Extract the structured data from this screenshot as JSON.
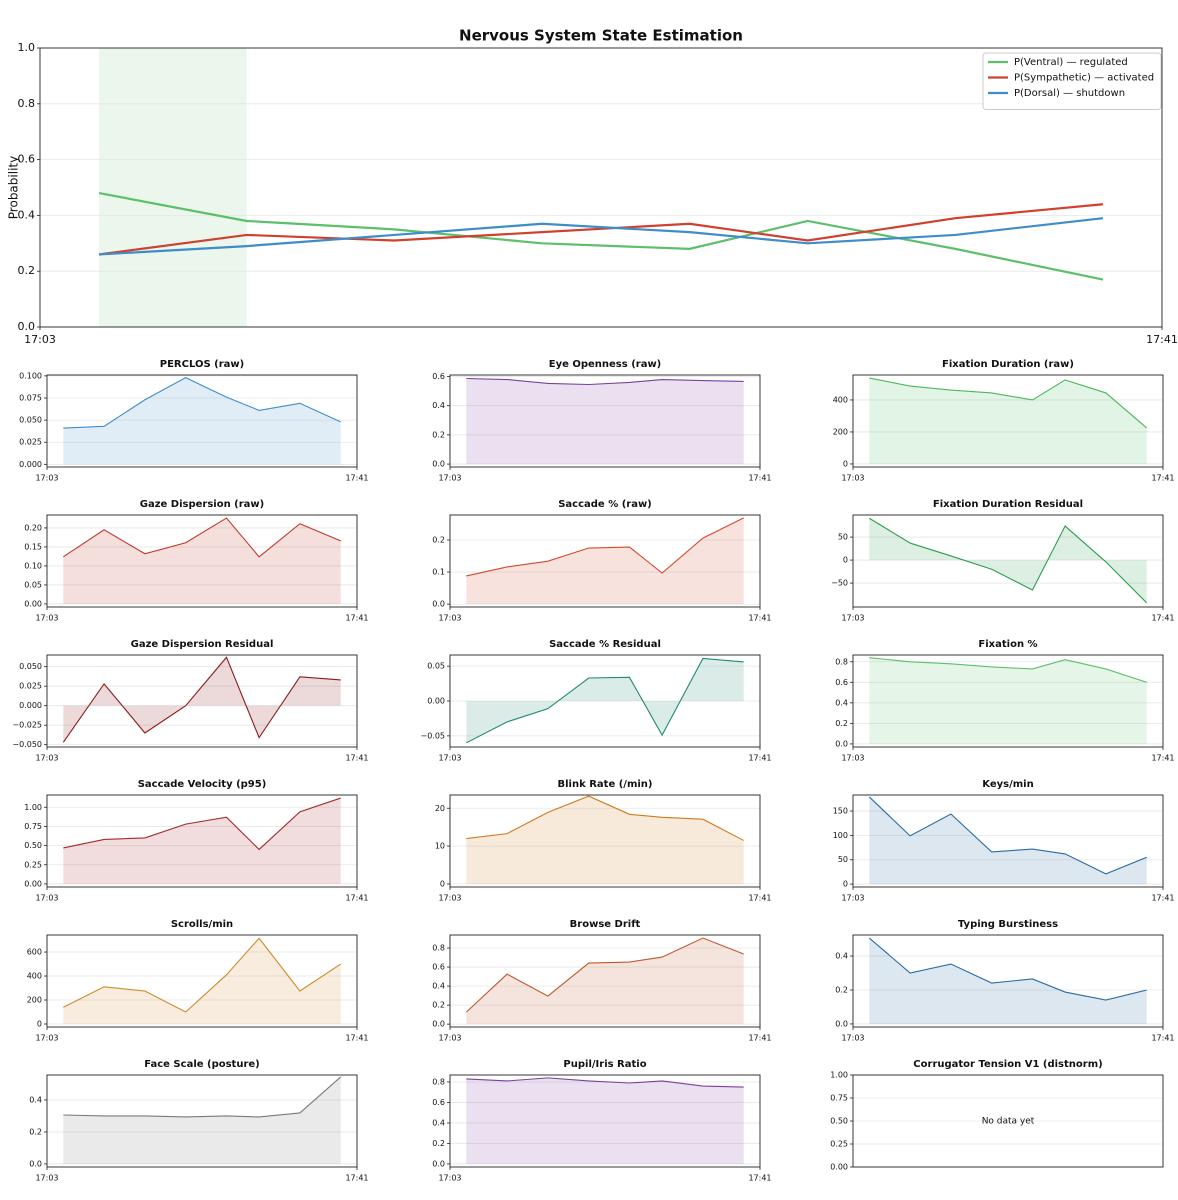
{
  "chart_data": [
    {
      "type": "line",
      "title": "Nervous System State Estimation",
      "ylabel": "Probability",
      "x": [
        "17:05",
        "17:10",
        "17:15",
        "17:20",
        "17:25",
        "17:29",
        "17:34",
        "17:39"
      ],
      "xlim": [
        "17:03",
        "17:41"
      ],
      "xticks": [
        "17:03",
        "17:41"
      ],
      "ylim": [
        0,
        1
      ],
      "yticks": [
        {
          "value": 0,
          "label": "0.0"
        },
        0.2,
        0.4,
        0.6,
        0.8,
        {
          "value": 1,
          "label": "1.0"
        }
      ],
      "grid": true,
      "legend": "upper right",
      "highlight": [
        "17:05",
        "17:10"
      ],
      "highlight_color": "#5cbf6a",
      "series": [
        {
          "name": "P(Ventral) — regulated",
          "color": "#5cbf6a",
          "values": [
            0.48,
            0.38,
            0.35,
            0.3,
            0.28,
            0.38,
            0.28,
            0.17
          ]
        },
        {
          "name": "P(Sympathetic) — activated",
          "color": "#d0402f",
          "values": [
            0.26,
            0.33,
            0.31,
            0.34,
            0.37,
            0.31,
            0.39,
            0.44
          ]
        },
        {
          "name": "P(Dorsal) — shutdown",
          "color": "#3f8ccb",
          "values": [
            0.26,
            0.29,
            0.33,
            0.37,
            0.34,
            0.3,
            0.33,
            0.39
          ]
        }
      ]
    },
    {
      "type": "area",
      "title": "PERCLOS (raw)",
      "color": "#3f8ccb",
      "x": [
        "17:05",
        "17:10",
        "17:15",
        "17:20",
        "17:25",
        "17:29",
        "17:34",
        "17:39"
      ],
      "xlim": [
        "17:03",
        "17:41"
      ],
      "xticks": [
        "17:03",
        "17:41"
      ],
      "values": [
        0.041,
        0.043,
        0.073,
        0.098,
        0.076,
        0.061,
        0.069,
        0.048
      ],
      "ylim": [
        -0.003,
        0.101
      ],
      "yticks": [
        {
          "value": 0,
          "label": "0.000"
        },
        0.025,
        {
          "value": 0.05,
          "label": "0.050"
        },
        0.075,
        {
          "value": 0.1,
          "label": "0.100"
        }
      ],
      "grid": true
    },
    {
      "type": "area",
      "title": "Eye Openness (raw)",
      "color": "#7b3f9e",
      "x": [
        "17:05",
        "17:10",
        "17:15",
        "17:20",
        "17:25",
        "17:29",
        "17:34",
        "17:39"
      ],
      "xlim": [
        "17:03",
        "17:41"
      ],
      "xticks": [
        "17:03",
        "17:41"
      ],
      "values": [
        0.586,
        0.579,
        0.552,
        0.545,
        0.559,
        0.579,
        0.572,
        0.566
      ],
      "ylim": [
        -0.02,
        0.61
      ],
      "yticks": [
        {
          "value": 0,
          "label": "0.0"
        },
        0.2,
        0.4,
        0.6
      ],
      "grid": true
    },
    {
      "type": "area",
      "title": "Fixation Duration (raw)",
      "color": "#4cb85c",
      "x": [
        "17:05",
        "17:10",
        "17:15",
        "17:20",
        "17:25",
        "17:29",
        "17:34",
        "17:39"
      ],
      "xlim": [
        "17:03",
        "17:41"
      ],
      "xticks": [
        "17:03",
        "17:41"
      ],
      "values": [
        537,
        487,
        462,
        444,
        400,
        525,
        444,
        225
      ],
      "ylim": [
        -19,
        556
      ],
      "yticks": [
        0,
        200,
        400
      ],
      "grid": true
    },
    {
      "type": "area",
      "title": "Gaze Dispersion (raw)",
      "color": "#c0392b",
      "x": [
        "17:05",
        "17:10",
        "17:15",
        "17:20",
        "17:25",
        "17:29",
        "17:34",
        "17:39"
      ],
      "xlim": [
        "17:03",
        "17:41"
      ],
      "xticks": [
        "17:03",
        "17:41"
      ],
      "values": [
        0.124,
        0.195,
        0.132,
        0.161,
        0.226,
        0.124,
        0.211,
        0.166
      ],
      "ylim": [
        -0.008,
        0.234
      ],
      "yticks": [
        {
          "value": 0,
          "label": "0.00"
        },
        0.05,
        {
          "value": 0.1,
          "label": "0.10"
        },
        0.15,
        {
          "value": 0.2,
          "label": "0.20"
        }
      ],
      "grid": true
    },
    {
      "type": "area",
      "title": "Saccade % (raw)",
      "color": "#d44b2a",
      "x": [
        "17:05",
        "17:10",
        "17:15",
        "17:20",
        "17:25",
        "17:29",
        "17:34",
        "17:39"
      ],
      "xlim": [
        "17:03",
        "17:41"
      ],
      "xticks": [
        "17:03",
        "17:41"
      ],
      "values": [
        0.088,
        0.116,
        0.134,
        0.175,
        0.178,
        0.097,
        0.206,
        0.269
      ],
      "ylim": [
        -0.009,
        0.278
      ],
      "yticks": [
        {
          "value": 0,
          "label": "0.0"
        },
        0.1,
        0.2
      ],
      "grid": true
    },
    {
      "type": "area",
      "title": "Fixation Duration Residual",
      "color": "#2e9e4e",
      "x": [
        "17:05",
        "17:10",
        "17:15",
        "17:20",
        "17:25",
        "17:29",
        "17:34",
        "17:39"
      ],
      "xlim": [
        "17:03",
        "17:41"
      ],
      "xticks": [
        "17:03",
        "17:41"
      ],
      "values": [
        91,
        37,
        9,
        -20,
        -65,
        74,
        -4,
        -93
      ],
      "ylim": [
        -102,
        98
      ],
      "yticks": [
        {
          "value": -50,
          "label": "−50"
        },
        0,
        50
      ],
      "grid": true
    },
    {
      "type": "area",
      "title": "Gaze Dispersion Residual",
      "color": "#8b1a1a",
      "x": [
        "17:05",
        "17:10",
        "17:15",
        "17:20",
        "17:25",
        "17:29",
        "17:34",
        "17:39"
      ],
      "xlim": [
        "17:03",
        "17:41"
      ],
      "xticks": [
        "17:03",
        "17:41"
      ],
      "values": [
        -0.047,
        0.028,
        -0.035,
        0.0,
        0.062,
        -0.041,
        0.037,
        0.033
      ],
      "ylim": [
        -0.053,
        0.065
      ],
      "yticks": [
        {
          "value": -0.05,
          "label": "−0.050"
        },
        {
          "value": -0.025,
          "label": "−0.025"
        },
        {
          "value": 0,
          "label": "0.000"
        },
        0.025,
        {
          "value": 0.05,
          "label": "0.050"
        }
      ],
      "grid": true
    },
    {
      "type": "area",
      "title": "Saccade % Residual",
      "color": "#1f8a70",
      "x": [
        "17:05",
        "17:10",
        "17:15",
        "17:20",
        "17:25",
        "17:29",
        "17:34",
        "17:39"
      ],
      "xlim": [
        "17:03",
        "17:41"
      ],
      "xticks": [
        "17:03",
        "17:41"
      ],
      "values": [
        -0.06,
        -0.03,
        -0.011,
        0.033,
        0.034,
        -0.049,
        0.061,
        0.056
      ],
      "ylim": [
        -0.066,
        0.066
      ],
      "yticks": [
        {
          "value": -0.05,
          "label": "−0.05"
        },
        {
          "value": 0,
          "label": "0.00"
        },
        0.05
      ],
      "grid": true
    },
    {
      "type": "area",
      "title": "Fixation %",
      "color": "#5cbf6a",
      "x": [
        "17:05",
        "17:10",
        "17:15",
        "17:20",
        "17:25",
        "17:29",
        "17:34",
        "17:39"
      ],
      "xlim": [
        "17:03",
        "17:41"
      ],
      "xticks": [
        "17:03",
        "17:41"
      ],
      "values": [
        0.84,
        0.8,
        0.78,
        0.75,
        0.73,
        0.82,
        0.73,
        0.6
      ],
      "ylim": [
        -0.03,
        0.866
      ],
      "yticks": [
        {
          "value": 0,
          "label": "0.0"
        },
        0.2,
        0.4,
        0.6,
        0.8
      ],
      "grid": true
    },
    {
      "type": "area",
      "title": "Saccade Velocity (p95)",
      "color": "#a52a2a",
      "x": [
        "17:05",
        "17:10",
        "17:15",
        "17:20",
        "17:25",
        "17:29",
        "17:34",
        "17:39"
      ],
      "xlim": [
        "17:03",
        "17:41"
      ],
      "xticks": [
        "17:03",
        "17:41"
      ],
      "values": [
        0.47,
        0.58,
        0.6,
        0.78,
        0.87,
        0.45,
        0.94,
        1.12
      ],
      "ylim": [
        -0.04,
        1.16
      ],
      "yticks": [
        {
          "value": 0,
          "label": "0.00"
        },
        0.25,
        {
          "value": 0.5,
          "label": "0.50"
        },
        0.75,
        {
          "value": 1,
          "label": "1.00"
        }
      ],
      "grid": true
    },
    {
      "type": "area",
      "title": "Blink Rate (/min)",
      "color": "#d07a1e",
      "x": [
        "17:05",
        "17:10",
        "17:15",
        "17:20",
        "17:25",
        "17:29",
        "17:34",
        "17:39"
      ],
      "xlim": [
        "17:03",
        "17:41"
      ],
      "xticks": [
        "17:03",
        "17:41"
      ],
      "values": [
        12.0,
        13.3,
        18.9,
        23.2,
        18.4,
        17.6,
        17.1,
        11.5
      ],
      "ylim": [
        -0.8,
        23.5
      ],
      "yticks": [
        0,
        10,
        20
      ],
      "grid": true
    },
    {
      "type": "area",
      "title": "Keys/min",
      "color": "#2b6ca3",
      "x": [
        "17:05",
        "17:10",
        "17:15",
        "17:20",
        "17:25",
        "17:29",
        "17:34",
        "17:39"
      ],
      "xlim": [
        "17:03",
        "17:41"
      ],
      "xticks": [
        "17:03",
        "17:41"
      ],
      "values": [
        179,
        99,
        144,
        66,
        72,
        62,
        21,
        55
      ],
      "ylim": [
        -6,
        183
      ],
      "yticks": [
        0,
        50,
        100,
        150
      ],
      "grid": true
    },
    {
      "type": "area",
      "title": "Scrolls/min",
      "color": "#d08a2a",
      "x": [
        "17:05",
        "17:10",
        "17:15",
        "17:20",
        "17:25",
        "17:29",
        "17:34",
        "17:39"
      ],
      "xlim": [
        "17:03",
        "17:41"
      ],
      "xticks": [
        "17:03",
        "17:41"
      ],
      "values": [
        140,
        310,
        275,
        100,
        410,
        715,
        275,
        500
      ],
      "ylim": [
        -25,
        742
      ],
      "yticks": [
        0,
        200,
        400,
        600
      ],
      "grid": true
    },
    {
      "type": "area",
      "title": "Browse Drift",
      "color": "#c0582a",
      "x": [
        "17:05",
        "17:10",
        "17:15",
        "17:20",
        "17:25",
        "17:29",
        "17:34",
        "17:39"
      ],
      "xlim": [
        "17:03",
        "17:41"
      ],
      "xticks": [
        "17:03",
        "17:41"
      ],
      "values": [
        0.126,
        0.526,
        0.295,
        0.642,
        0.653,
        0.705,
        0.905,
        0.737
      ],
      "ylim": [
        -0.03,
        0.937
      ],
      "yticks": [
        {
          "value": 0,
          "label": "0.0"
        },
        0.2,
        0.4,
        0.6,
        0.8
      ],
      "grid": true
    },
    {
      "type": "area",
      "title": "Typing Burstiness",
      "color": "#2b6ca3",
      "x": [
        "17:05",
        "17:10",
        "17:15",
        "17:20",
        "17:25",
        "17:29",
        "17:34",
        "17:39"
      ],
      "xlim": [
        "17:03",
        "17:41"
      ],
      "xticks": [
        "17:03",
        "17:41"
      ],
      "values": [
        0.506,
        0.3,
        0.353,
        0.241,
        0.265,
        0.188,
        0.141,
        0.2
      ],
      "ylim": [
        -0.018,
        0.524
      ],
      "yticks": [
        {
          "value": 0,
          "label": "0.0"
        },
        0.2,
        0.4
      ],
      "grid": true
    },
    {
      "type": "area",
      "title": "Face Scale (posture)",
      "color": "#7a7a7a",
      "x": [
        "17:05",
        "17:10",
        "17:15",
        "17:20",
        "17:25",
        "17:29",
        "17:34",
        "17:39"
      ],
      "xlim": [
        "17:03",
        "17:41"
      ],
      "xticks": [
        "17:03",
        "17:41"
      ],
      "values": [
        0.306,
        0.3,
        0.3,
        0.294,
        0.3,
        0.294,
        0.319,
        0.544
      ],
      "ylim": [
        -0.019,
        0.556
      ],
      "yticks": [
        {
          "value": 0,
          "label": "0.0"
        },
        0.2,
        0.4
      ],
      "grid": true
    },
    {
      "type": "area",
      "title": "Pupil/Iris Ratio",
      "color": "#7b3f9e",
      "x": [
        "17:05",
        "17:10",
        "17:15",
        "17:20",
        "17:25",
        "17:29",
        "17:34",
        "17:39"
      ],
      "xlim": [
        "17:03",
        "17:41"
      ],
      "xticks": [
        "17:03",
        "17:41"
      ],
      "values": [
        0.83,
        0.81,
        0.84,
        0.81,
        0.79,
        0.81,
        0.76,
        0.75
      ],
      "ylim": [
        -0.03,
        0.868
      ],
      "yticks": [
        {
          "value": 0,
          "label": "0.0"
        },
        0.2,
        0.4,
        0.6,
        0.8
      ],
      "grid": true
    },
    {
      "type": "empty",
      "title": "Corrugator Tension V1 (distnorm)",
      "annotation": "No data yet",
      "ylim": [
        0,
        1
      ],
      "yticks": [
        {
          "value": 0,
          "label": "0.00"
        },
        0.25,
        {
          "value": 0.5,
          "label": "0.50"
        },
        0.75,
        {
          "value": 1,
          "label": "1.00"
        }
      ],
      "grid": true
    }
  ]
}
